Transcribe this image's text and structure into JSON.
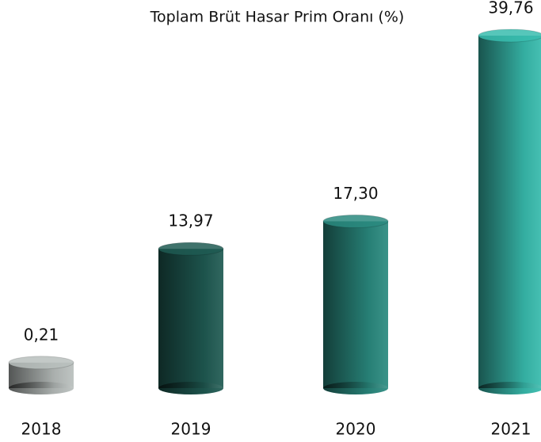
{
  "chart_data": {
    "type": "bar",
    "title": "Toplam Brüt Hasar Prim Oranı (%)",
    "categories": [
      "2018",
      "2019",
      "2020",
      "2021"
    ],
    "values": [
      0.21,
      13.97,
      17.3,
      39.76
    ],
    "value_labels": [
      "0,21",
      "13,97",
      "17,30",
      "39,76"
    ],
    "colors": [
      "#b9bfbd",
      "#1f5a52",
      "#2a8a7f",
      "#38bcae"
    ]
  }
}
